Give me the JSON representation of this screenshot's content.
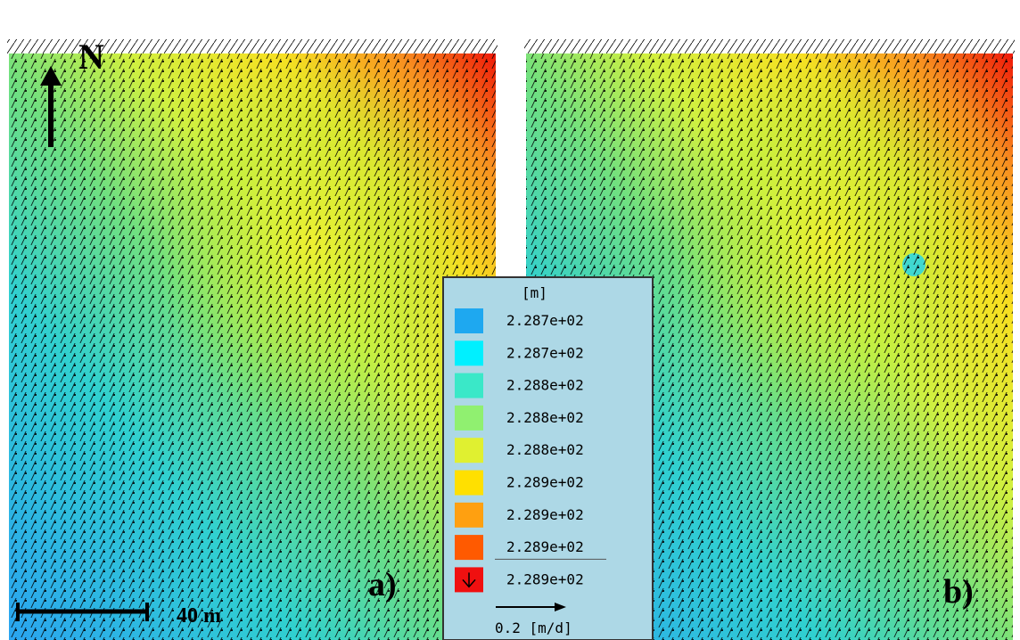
{
  "panels": [
    {
      "label": "a)"
    },
    {
      "label": "b)"
    }
  ],
  "north": "N",
  "scale_bar": "40 m",
  "legend": {
    "unit": "[m]",
    "items": [
      {
        "color": "#1ea8f0",
        "label": "2.287e+02"
      },
      {
        "color": "#00f0ff",
        "label": "2.287e+02"
      },
      {
        "color": "#3ae8c8",
        "label": "2.288e+02"
      },
      {
        "color": "#90f070",
        "label": "2.288e+02"
      },
      {
        "color": "#e0f030",
        "label": "2.288e+02"
      },
      {
        "color": "#ffe000",
        "label": "2.289e+02"
      },
      {
        "color": "#ffa010",
        "label": "2.289e+02"
      },
      {
        "color": "#ff5a00",
        "label": "2.289e+02"
      },
      {
        "color": "#f01010",
        "label": "2.289e+02"
      }
    ],
    "vector_label": "0.2 [m/d]"
  }
}
